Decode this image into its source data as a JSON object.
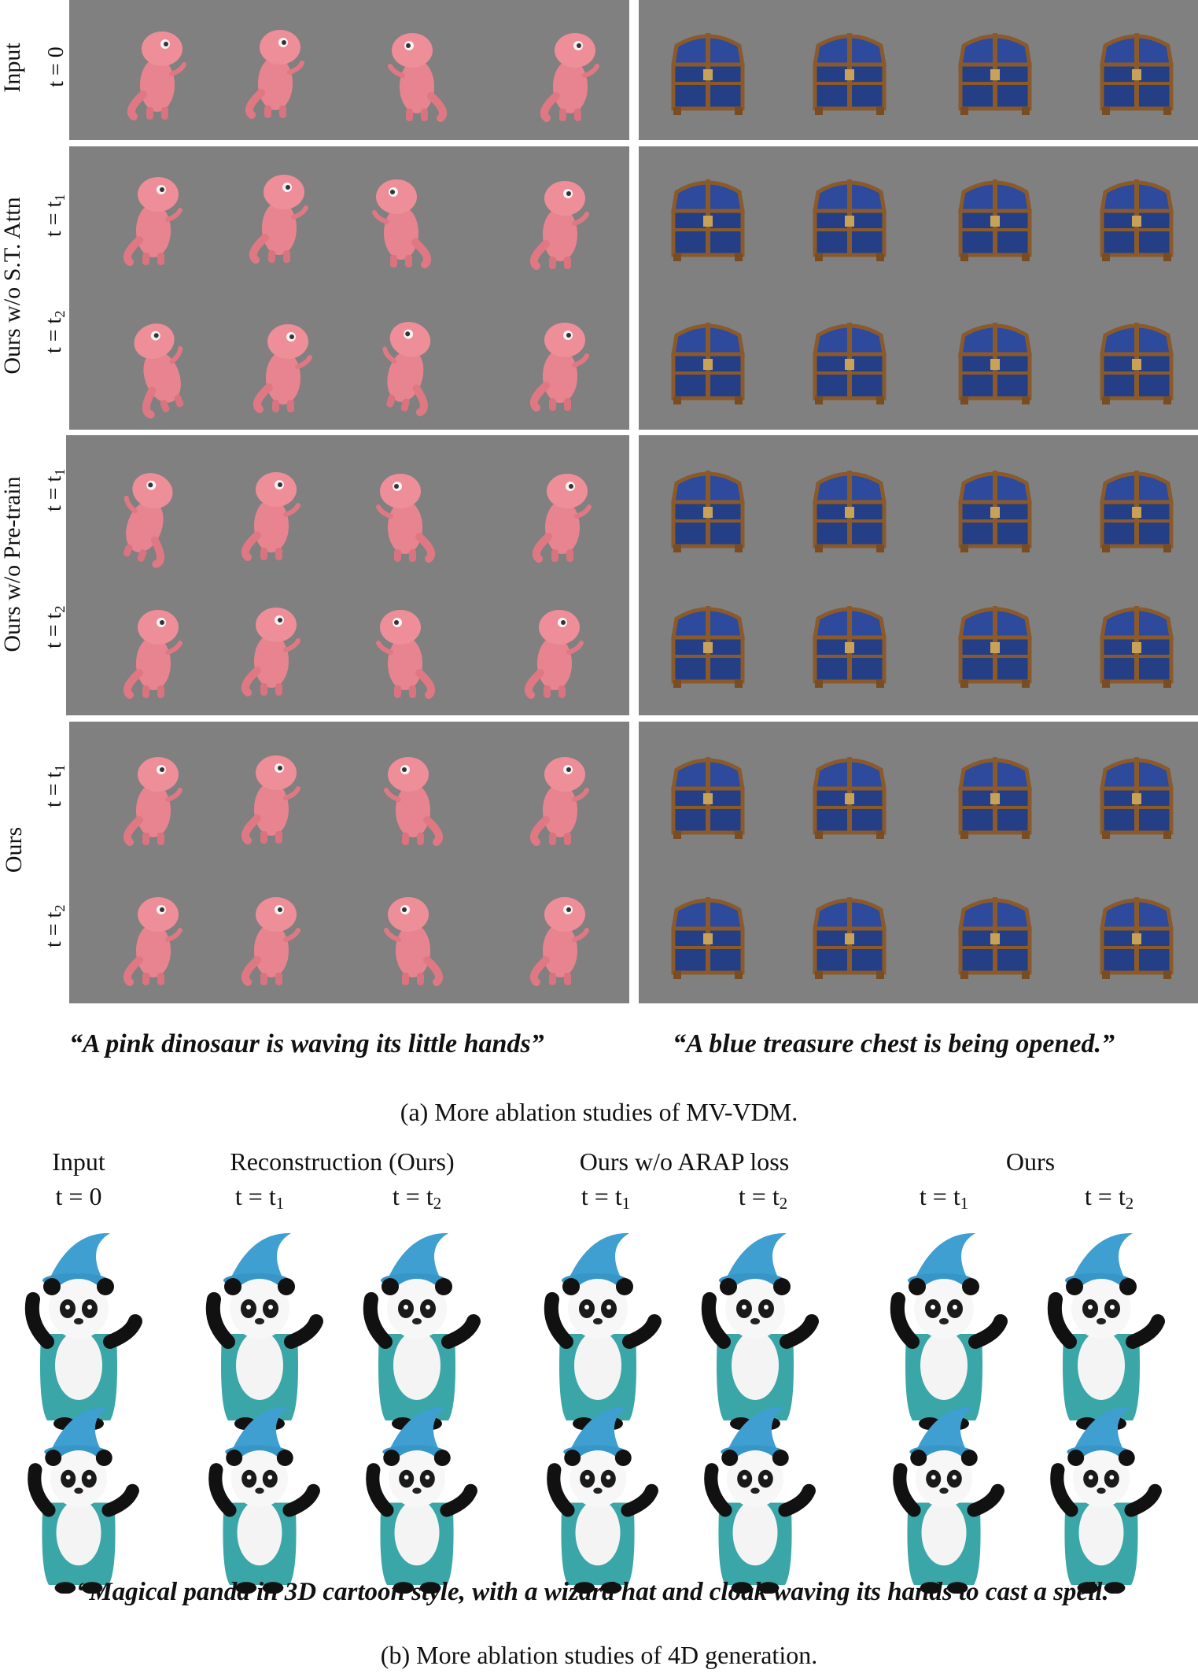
{
  "part_a": {
    "rows": [
      {
        "label": "Input",
        "times": [
          "t = 0"
        ]
      },
      {
        "label": "Ours w/o S.T. Attn",
        "times": [
          "t = t1",
          "t = t2"
        ]
      },
      {
        "label": "Ours w/o Pre-train",
        "times": [
          "t = t1",
          "t = t2"
        ]
      },
      {
        "label": "Ours",
        "times": [
          "t = t1",
          "t = t2"
        ]
      }
    ],
    "row_labels": {
      "input": "Input",
      "input_t": "t = 0",
      "st_attn": "Ours w/o S.T. Attn",
      "pretrain": "Ours w/o Pre-train",
      "ours": "Ours"
    },
    "t_prefix": "t = t",
    "sub1": "1",
    "sub2": "2",
    "quote_left": "“A pink dinosaur is waving its little hands”",
    "quote_right": "“A blue treasure chest is being opened.”",
    "caption": "(a) More ablation studies of MV-VDM."
  },
  "part_b": {
    "col_input": "Input",
    "col_input_t": "t = 0",
    "col_recon": "Reconstruction (Ours)",
    "col_arap": "Ours w/o ARAP loss",
    "col_ours": "Ours",
    "quote": "“Magical panda in 3D cartoon style, with a wizard hat and cloak waving its hands to cast a spell.”",
    "caption": "(b) More ablation studies of 4D generation."
  },
  "colors": {
    "panel_bg": "#808080",
    "dino": "#e8848f",
    "chest_blue": "#27408a",
    "chest_wood": "#8a5a2b",
    "panda_cloak": "#3aa6a8",
    "panda_hat": "#3f9fd0"
  }
}
